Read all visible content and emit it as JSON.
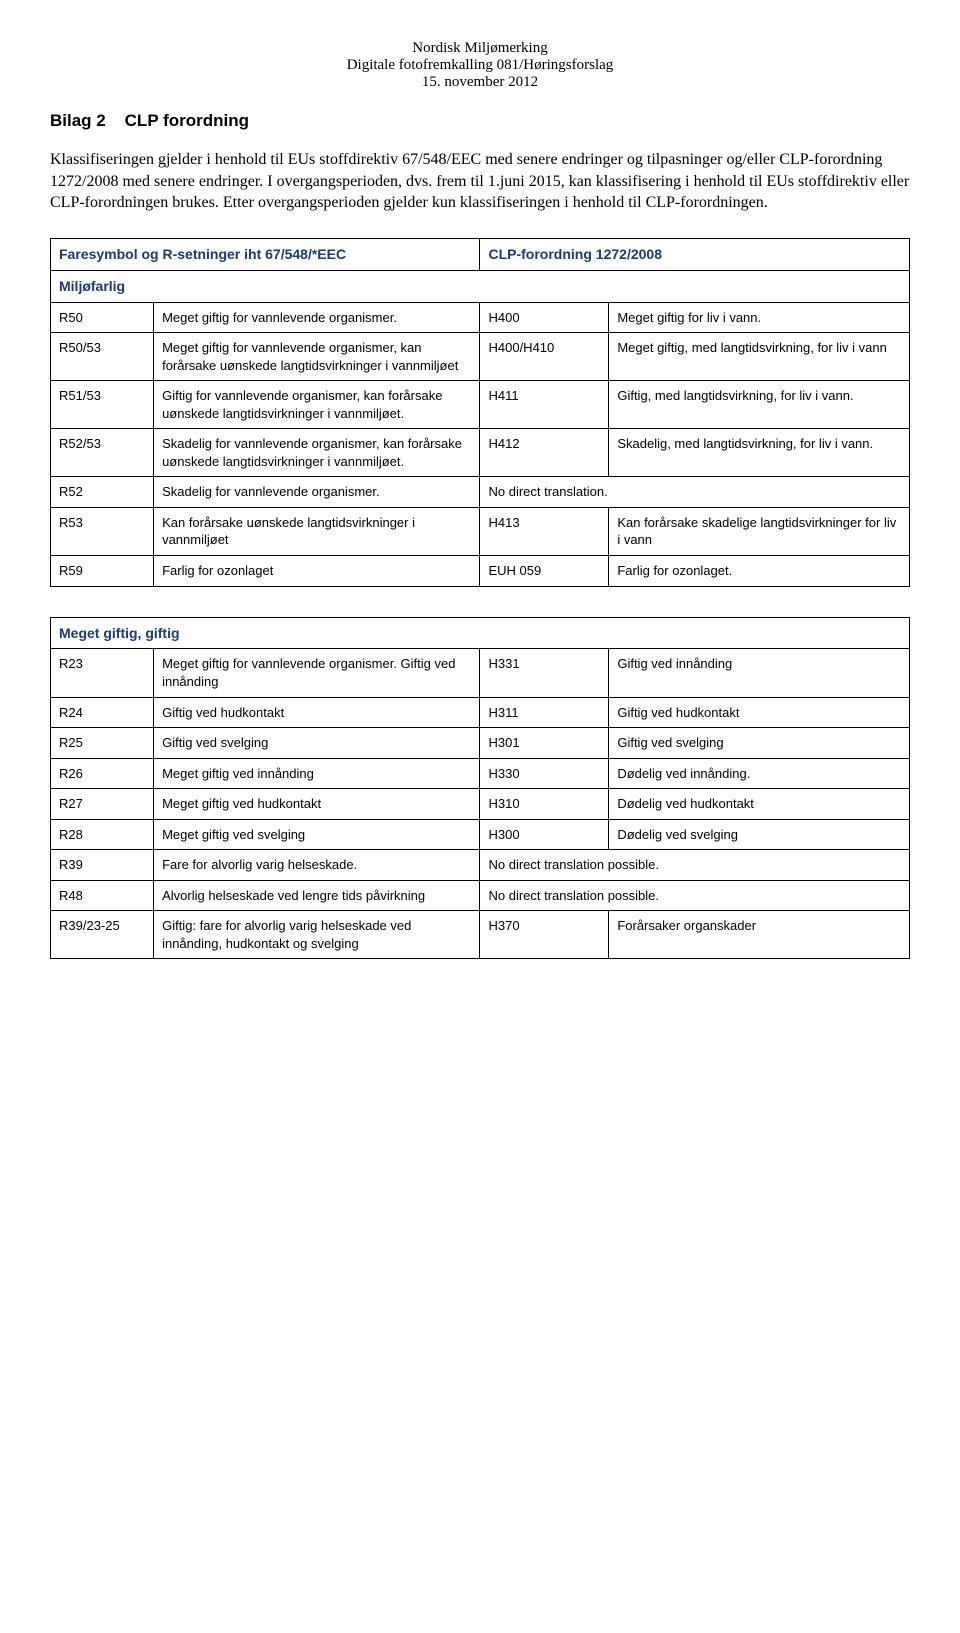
{
  "header": {
    "line1": "Nordisk Miljømerking",
    "line2": "Digitale fotofremkalling 081/Høringsforslag",
    "line3": "15. november 2012"
  },
  "title": {
    "label": "Bilag 2",
    "text": "CLP forordning"
  },
  "intro": "Klassifiseringen gjelder i henhold til EUs stoffdirektiv 67/548/EEC med senere endringer og tilpasninger og/eller CLP-forordning 1272/2008 med senere endringer. I overgangsperioden, dvs. frem til 1.juni 2015, kan klassifisering i henhold til EUs stoffdirektiv eller CLP-forordningen brukes. Etter overgangsperioden gjelder kun klassifiseringen i henhold til CLP-forordningen.",
  "table1": {
    "head_left": "Faresymbol og R-setninger iht 67/548/*EEC",
    "head_right": "CLP-forordning 1272/2008",
    "subhead": "Miljøfarlig",
    "rows": [
      {
        "c1": "R50",
        "c2": "Meget giftig for vannlevende organismer.",
        "c3": "H400",
        "c4": "Meget giftig for liv i vann."
      },
      {
        "c1": "R50/53",
        "c2": "Meget giftig for vannlevende organismer, kan forårsake uønskede langtidsvirkninger i vannmiljøet",
        "c3": "H400/H410",
        "c4": "Meget giftig, med langtidsvirkning, for liv i vann"
      },
      {
        "c1": "R51/53",
        "c2": "Giftig for vannlevende organismer, kan forårsake uønskede langtidsvirkninger i vannmiljøet.",
        "c3": "H411",
        "c4": "Giftig, med langtidsvirkning, for liv i vann."
      },
      {
        "c1": "R52/53",
        "c2": "Skadelig for vannlevende organismer, kan forårsake uønskede langtidsvirkninger i vannmiljøet.",
        "c3": "H412",
        "c4": "Skadelig, med langtidsvirkning, for liv i vann."
      },
      {
        "c1": "R52",
        "c2": "Skadelig for vannlevende organismer.",
        "c3": "No direct translation.",
        "c4": "",
        "merge34": true
      },
      {
        "c1": "R53",
        "c2": "Kan forårsake uønskede langtidsvirkninger i vannmiljøet",
        "c3": "H413",
        "c4": "Kan forårsake skadelige langtidsvirkninger for liv i vann"
      },
      {
        "c1": "R59",
        "c2": "Farlig for ozonlaget",
        "c3": "EUH 059",
        "c4": "Farlig for ozonlaget."
      }
    ]
  },
  "table2": {
    "subhead": "Meget giftig, giftig",
    "rows": [
      {
        "c1": "R23",
        "c2": "Meget giftig for vannlevende organismer. Giftig ved innånding",
        "c3": "H331",
        "c4": "Giftig ved innånding"
      },
      {
        "c1": "R24",
        "c2": "Giftig ved hudkontakt",
        "c3": "H311",
        "c4": "Giftig ved hudkontakt"
      },
      {
        "c1": "R25",
        "c2": "Giftig ved svelging",
        "c3": "H301",
        "c4": "Giftig ved svelging"
      },
      {
        "c1": "R26",
        "c2": "Meget giftig ved innånding",
        "c3": "H330",
        "c4": "Dødelig ved innånding."
      },
      {
        "c1": "R27",
        "c2": "Meget giftig ved hudkontakt",
        "c3": "H310",
        "c4": "Dødelig ved hudkontakt"
      },
      {
        "c1": "R28",
        "c2": "Meget giftig ved svelging",
        "c3": "H300",
        "c4": "Dødelig ved svelging"
      },
      {
        "c1": "R39",
        "c2": "Fare for alvorlig varig helseskade.",
        "c3": "No direct translation possible.",
        "c4": "",
        "merge34": true
      },
      {
        "c1": "R48",
        "c2": "Alvorlig helseskade ved lengre tids påvirkning",
        "c3": "No direct translation possible.",
        "c4": "",
        "merge34": true
      },
      {
        "c1": "R39/23-25",
        "c2": "Giftig: fare for alvorlig varig helseskade ved innånding, hudkontakt og svelging",
        "c3": "H370",
        "c4": "Forårsaker organskader"
      }
    ]
  }
}
